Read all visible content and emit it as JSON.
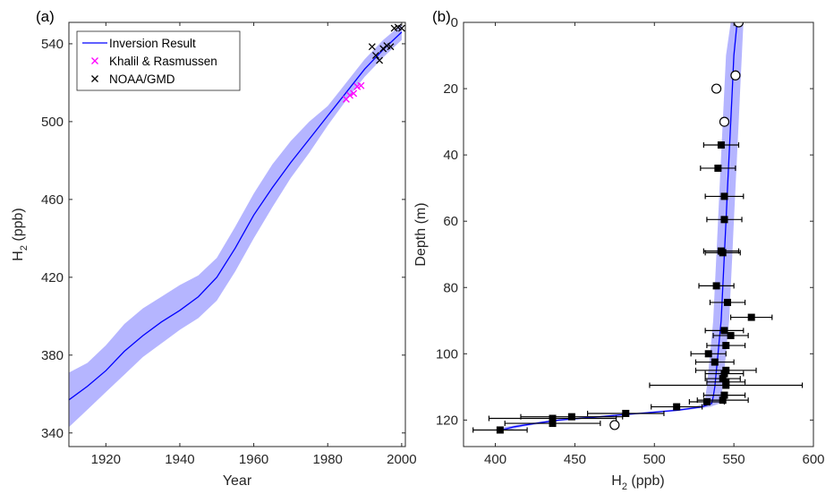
{
  "chart_data": [
    {
      "type": "line",
      "panel_label": "(a)",
      "xlabel": "Year",
      "ylabel_main": "H",
      "ylabel_sub": "2",
      "ylabel_tail": " (ppb)",
      "xlim": [
        1910,
        2001
      ],
      "ylim": [
        333,
        551
      ],
      "xticks": [
        1920,
        1940,
        1960,
        1980,
        2000
      ],
      "yticks": [
        340,
        380,
        420,
        460,
        500,
        540
      ],
      "legend_position": "top-left",
      "colors": {
        "inversion": "#0000ff",
        "band": "#b5b5ff",
        "khalil": "#ff00ff",
        "noaa": "#000000"
      },
      "series": [
        {
          "name": "Inversion Result",
          "kind": "line",
          "x": [
            1910,
            1915,
            1920,
            1925,
            1930,
            1935,
            1940,
            1945,
            1950,
            1955,
            1960,
            1965,
            1970,
            1975,
            1980,
            1985,
            1990,
            1995,
            2000
          ],
          "y": [
            357,
            364,
            372,
            382,
            390,
            397,
            403,
            410,
            420,
            435,
            452,
            466,
            479,
            491,
            503,
            515,
            527,
            537,
            546
          ],
          "lower": [
            343,
            352,
            361,
            370,
            379,
            386,
            393,
            399,
            408,
            423,
            440,
            456,
            471,
            484,
            498,
            511,
            523,
            533,
            542
          ],
          "upper": [
            371,
            376,
            385,
            396,
            404,
            410,
            416,
            421,
            430,
            446,
            463,
            478,
            490,
            500,
            508,
            520,
            532,
            542,
            550
          ]
        },
        {
          "name": "Khalil & Rasmussen",
          "kind": "scatter",
          "marker": "x",
          "x": [
            1985.0,
            1986.0,
            1987.0,
            1988.0,
            1989.0
          ],
          "y": [
            511.5,
            513.5,
            514.5,
            518.0,
            518.5
          ]
        },
        {
          "name": "NOAA/GMD",
          "kind": "scatter",
          "marker": "x",
          "x": [
            1992.0,
            1993.0,
            1994.0,
            1995.0,
            1996.0,
            1997.0,
            1998.0,
            1999.0,
            2000.0
          ],
          "y": [
            538.5,
            534.0,
            531.5,
            537.5,
            539.0,
            538.5,
            548.0,
            548.5,
            548.0
          ]
        }
      ]
    },
    {
      "type": "scatter",
      "panel_label": "(b)",
      "xlabel_main": "H",
      "xlabel_sub": "2",
      "xlabel_tail": " (ppb)",
      "ylabel": "Depth (m)",
      "xlim": [
        380,
        600
      ],
      "ylim": [
        0,
        128
      ],
      "y_reversed": true,
      "xticks": [
        400,
        450,
        500,
        550,
        600
      ],
      "yticks": [
        0,
        20,
        40,
        60,
        80,
        100,
        120
      ],
      "colors": {
        "profile": "#0000ff",
        "band": "#b5b5ff",
        "markers": "#000000"
      },
      "series": [
        {
          "kind": "line",
          "y": [
            0,
            10,
            20,
            30,
            40,
            50,
            60,
            70,
            80,
            90,
            95,
            100,
            105,
            110,
            113,
            115,
            116,
            117,
            118,
            119,
            120,
            121,
            122,
            123
          ],
          "x": [
            552,
            550,
            549,
            548,
            547,
            546,
            545,
            544,
            543,
            542,
            541,
            540,
            539,
            538,
            537,
            536,
            530,
            515,
            490,
            465,
            440,
            425,
            412,
            404
          ],
          "lower": [
            548,
            545,
            544,
            543,
            542,
            541,
            540,
            539,
            538,
            537,
            536,
            535,
            534,
            533,
            532,
            531,
            525,
            510,
            485,
            460,
            435,
            420,
            407,
            399
          ],
          "upper": [
            556,
            555,
            554,
            553,
            552,
            551,
            550,
            549,
            548,
            547,
            546,
            545,
            544,
            543,
            542,
            541,
            535,
            520,
            495,
            470,
            445,
            430,
            417,
            409
          ]
        },
        {
          "kind": "scatter",
          "marker": "open-circle",
          "x": [
            553,
            551,
            539,
            544,
            475
          ],
          "y": [
            0,
            16,
            20,
            30,
            121.5
          ]
        },
        {
          "kind": "scatter",
          "marker": "filled-square",
          "x": [
            542,
            540,
            544,
            544,
            542,
            543,
            539,
            546,
            561,
            544,
            548,
            545,
            534,
            538,
            545,
            544,
            543,
            545,
            545,
            544,
            543,
            533,
            514,
            482,
            448,
            436,
            436,
            403
          ],
          "y": [
            37,
            44,
            52.5,
            59.5,
            69,
            69.5,
            79.5,
            84.5,
            89,
            93,
            94.5,
            97.5,
            100,
            102.5,
            105,
            106,
            107.5,
            108.5,
            109.5,
            112.5,
            114,
            114.5,
            116,
            118,
            119,
            119.5,
            121,
            123
          ],
          "xerr": [
            11,
            11,
            12,
            11,
            11,
            11,
            11,
            11,
            13,
            12,
            11,
            12,
            11,
            12,
            19,
            12,
            11,
            12,
            48,
            13,
            16,
            11,
            16,
            24,
            32,
            40,
            30,
            17
          ]
        }
      ]
    }
  ]
}
